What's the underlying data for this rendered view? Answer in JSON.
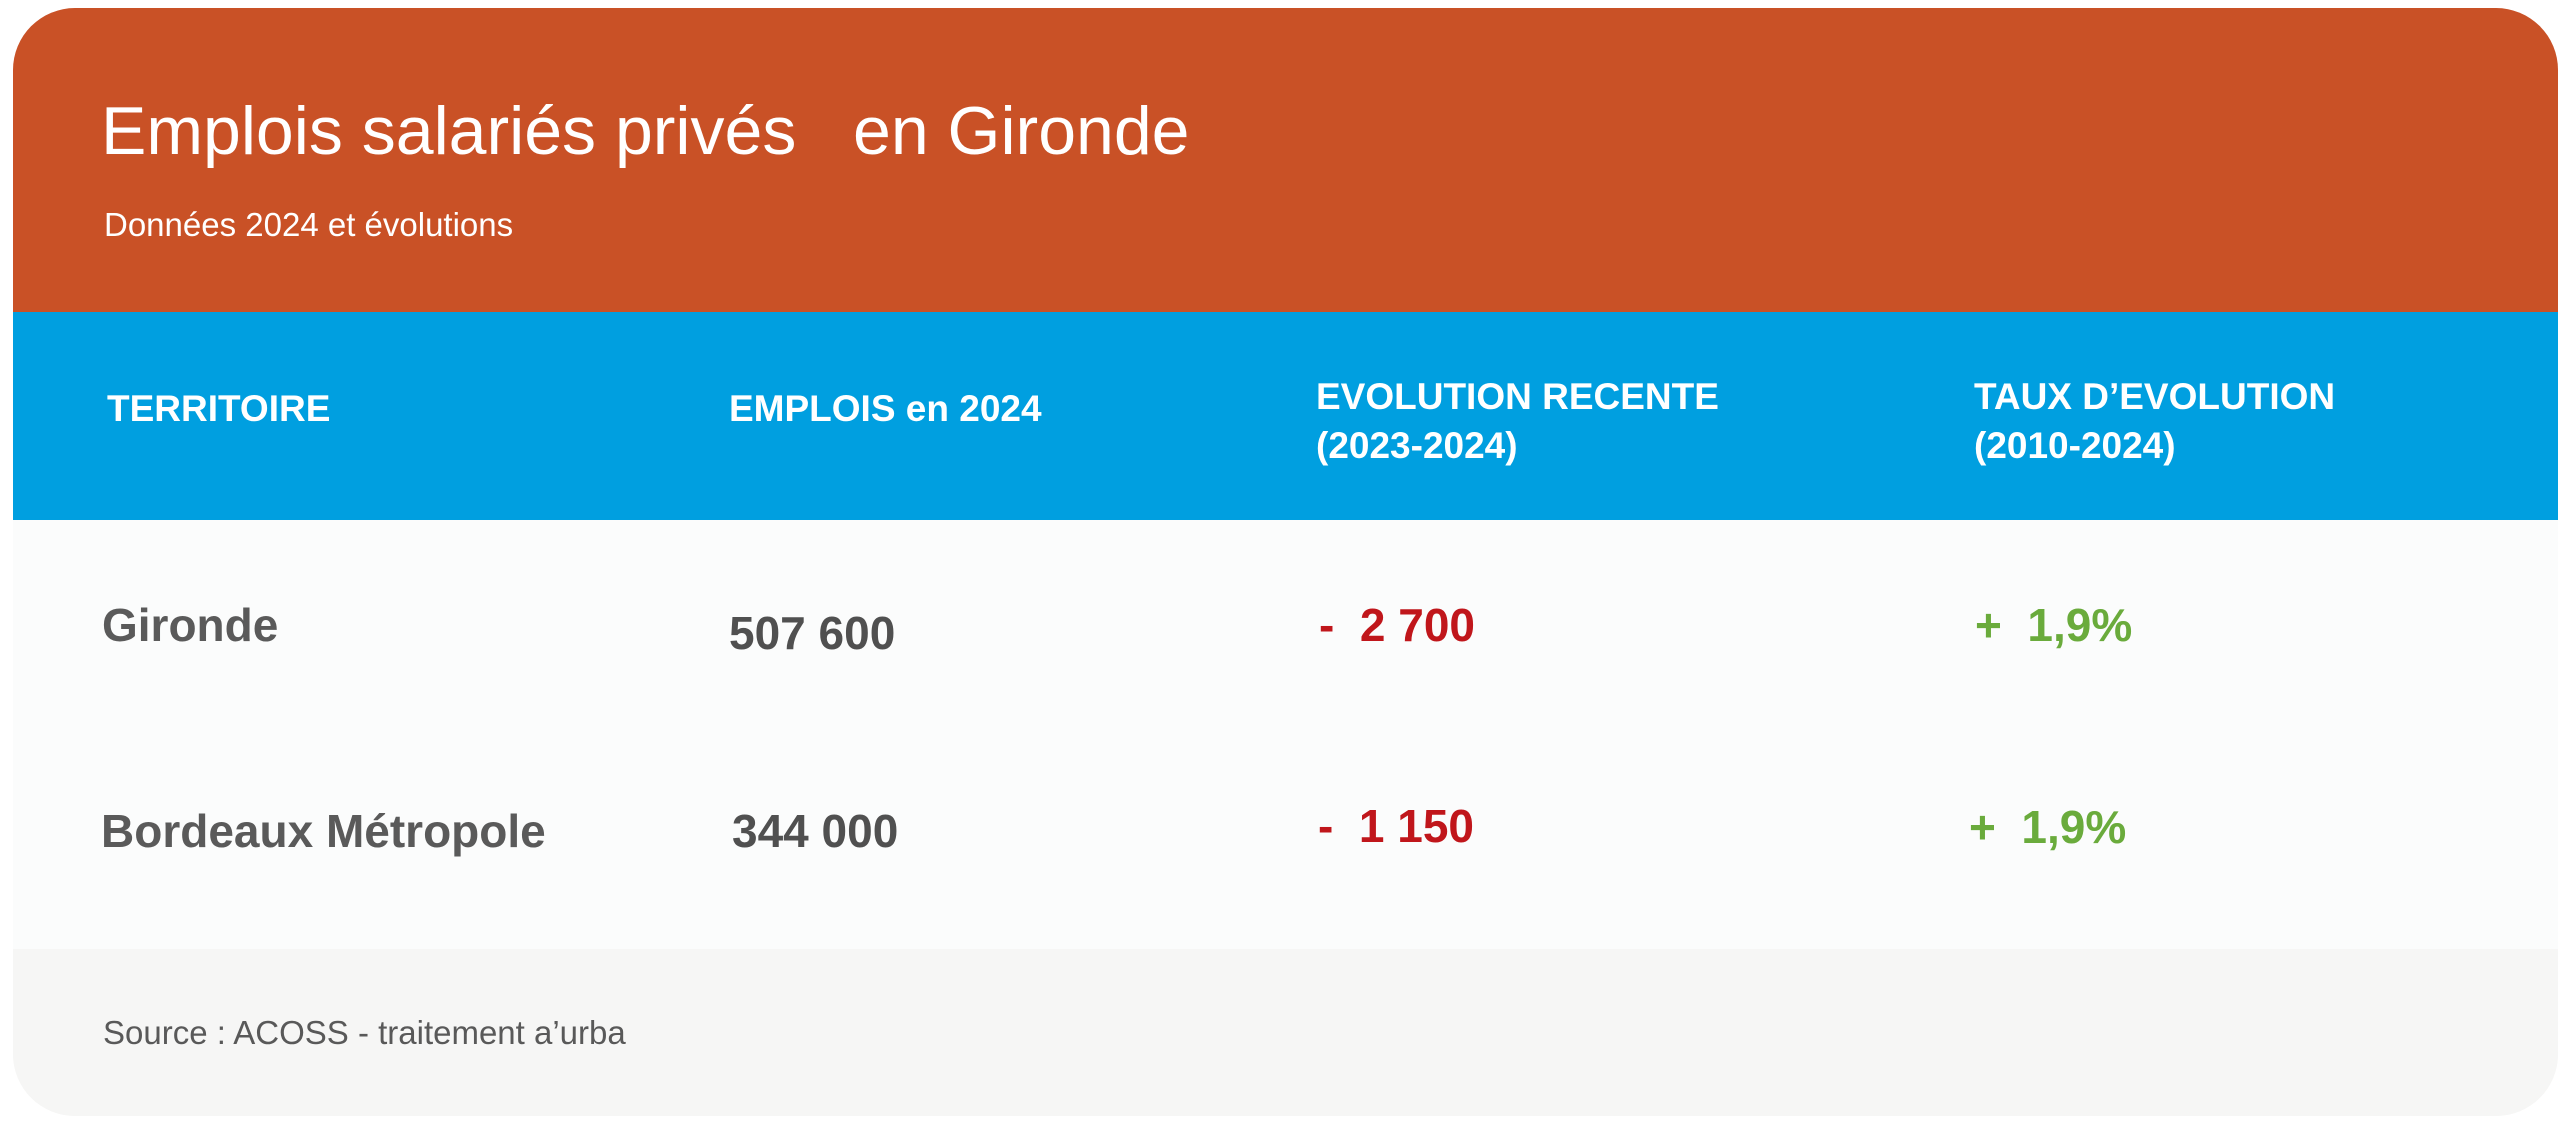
{
  "chart_data": {
    "type": "table",
    "title": "Emplois salariés privés   en Gironde",
    "subtitle": "Données 2024 et évolutions",
    "columns": [
      "TERRITOIRE",
      "EMPLOIS en 2024",
      "EVOLUTION RECENTE\n(2023-2024)",
      "TAUX D’EVOLUTION\n(2010-2024)"
    ],
    "rows": [
      {
        "territory": "Gironde",
        "employment_2024": "507 600",
        "recent_change": "-  2 700",
        "rate_of_change": "+  1,9%"
      },
      {
        "territory": "Bordeaux Métropole",
        "employment_2024": "344 000",
        "recent_change": "-  1 150",
        "rate_of_change": "+  1,9%"
      }
    ],
    "source": "Source : ACOSS - traitement a’urba"
  },
  "colors": {
    "header_background": "#c95126",
    "table_header_background": "#009fe0",
    "body_background": "#fbfcfc",
    "footer_background": "#f6f6f5",
    "negative_value": "#c0161b",
    "positive_value": "#6aab3c",
    "text_dark": "#5a5a5a"
  }
}
